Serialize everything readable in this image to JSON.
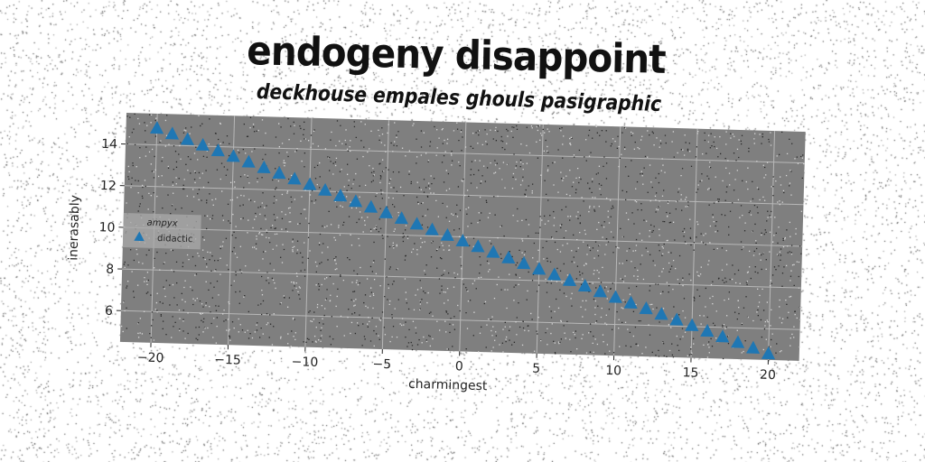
{
  "title": "endogeny disappoint",
  "subtitle": "deckhouse empales ghouls pasigraphic",
  "colors": {
    "plot_background": "#7f7f7f",
    "grid": "#b8b8b8",
    "series": "#1f77b4"
  },
  "chart_data": {
    "type": "scatter",
    "title": "endogeny disappoint",
    "subtitle": "deckhouse empales ghouls pasigraphic",
    "xlabel": "charmingest",
    "ylabel": "inerasably",
    "xlim": [
      -22,
      22
    ],
    "ylim": [
      4.5,
      15.5
    ],
    "xticks": [
      -20,
      -15,
      -10,
      -5,
      0,
      5,
      10,
      15,
      20
    ],
    "yticks": [
      6,
      8,
      10,
      12,
      14
    ],
    "grid": true,
    "marker": "triangle",
    "legend": {
      "title": "ampyx",
      "position": "center-left",
      "entries": [
        "didactic"
      ]
    },
    "series": [
      {
        "name": "didactic",
        "x": [
          -20,
          -19,
          -18,
          -17,
          -16,
          -15,
          -14,
          -13,
          -12,
          -11,
          -10,
          -9,
          -8,
          -7,
          -6,
          -5,
          -4,
          -3,
          -2,
          -1,
          0,
          1,
          2,
          3,
          4,
          5,
          6,
          7,
          8,
          9,
          10,
          11,
          12,
          13,
          14,
          15,
          16,
          17,
          18,
          19,
          20
        ],
        "y": [
          14.8,
          14.55,
          14.3,
          14.05,
          13.8,
          13.55,
          13.3,
          13.05,
          12.8,
          12.55,
          12.3,
          12.05,
          11.8,
          11.55,
          11.3,
          11.05,
          10.8,
          10.55,
          10.3,
          10.05,
          9.8,
          9.55,
          9.3,
          9.05,
          8.8,
          8.55,
          8.3,
          8.05,
          7.8,
          7.55,
          7.3,
          7.05,
          6.8,
          6.55,
          6.3,
          6.05,
          5.8,
          5.55,
          5.3,
          5.05,
          4.8
        ]
      }
    ]
  }
}
